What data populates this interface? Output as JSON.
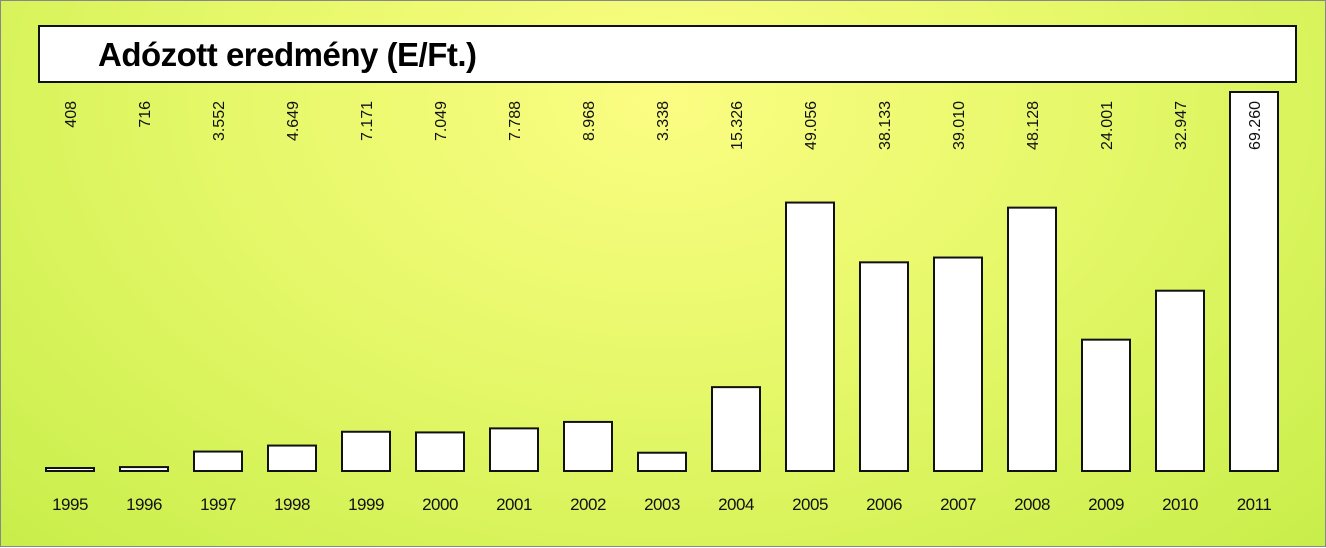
{
  "chart_data": {
    "type": "bar",
    "title": "Adózott eredmény (E/Ft.)",
    "categories": [
      "1995",
      "1996",
      "1997",
      "1998",
      "1999",
      "2000",
      "2001",
      "2002",
      "2003",
      "2004",
      "2005",
      "2006",
      "2007",
      "2008",
      "2009",
      "2010",
      "2011"
    ],
    "values": [
      408,
      716,
      3552,
      4649,
      7171,
      7049,
      7788,
      8968,
      3338,
      15326,
      49056,
      38133,
      39010,
      48128,
      24001,
      32947,
      69260
    ],
    "value_labels": [
      "408",
      "716",
      "3.552",
      "4.649",
      "7.171",
      "7.049",
      "7.788",
      "8.968",
      "3.338",
      "15.326",
      "49.056",
      "38.133",
      "39.010",
      "48.128",
      "24.001",
      "32.947",
      "69.260"
    ],
    "xlabel": "",
    "ylabel": "",
    "ylim": [
      0,
      69260
    ],
    "grid": false,
    "legend": "none"
  },
  "colors": {
    "bar_fill": "#ffffff",
    "bar_stroke": "#111111",
    "background_top": "#fbfd82",
    "background_bottom": "#c8ee4a"
  }
}
